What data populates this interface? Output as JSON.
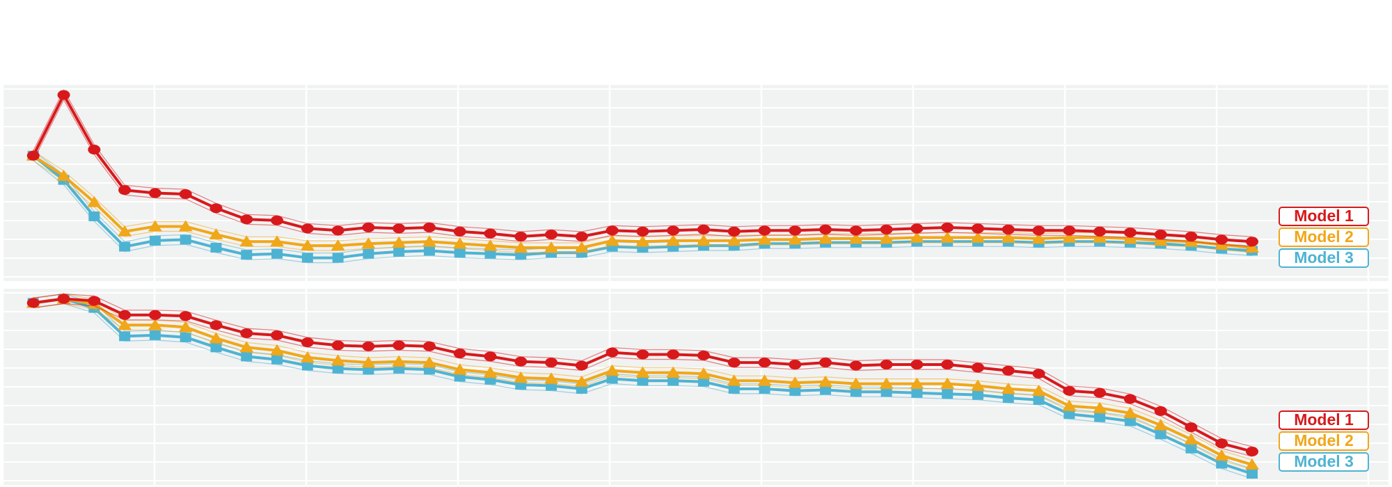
{
  "chart_data": [
    {
      "type": "line",
      "title": "",
      "xlabel": "",
      "ylabel": "",
      "grid": true,
      "legend_position": "right",
      "x": [
        1,
        2,
        3,
        4,
        5,
        6,
        7,
        8,
        9,
        10,
        11,
        12,
        13,
        14,
        15,
        16,
        17,
        18,
        19,
        20,
        21,
        22,
        23,
        24,
        25,
        26,
        27,
        28,
        29,
        30,
        31,
        32,
        33,
        34,
        35,
        36,
        37,
        38,
        39,
        40,
        41
      ],
      "xlim": [
        0,
        45.5
      ],
      "ylim": [
        0,
        97
      ],
      "series": [
        {
          "name": "Model 1",
          "color": "#d7191c",
          "marker": "circle",
          "values": [
            62,
            92,
            65,
            45,
            43.5,
            43,
            36,
            30.5,
            30,
            26,
            25,
            26.5,
            26,
            26.5,
            24.5,
            23.5,
            22,
            23,
            22,
            25,
            24.5,
            25,
            25.5,
            24.5,
            25,
            25,
            25.5,
            25,
            25.5,
            26,
            26.5,
            26,
            25.5,
            25,
            25,
            24.5,
            24,
            23,
            22,
            20.5,
            19.5
          ]
        },
        {
          "name": "Model 2",
          "color": "#f0a719",
          "marker": "triangle",
          "values": [
            62,
            52,
            39,
            24.5,
            27,
            27,
            23,
            19.5,
            19.5,
            17.5,
            17.5,
            18.5,
            19,
            19.5,
            18.5,
            17.5,
            16.5,
            16.5,
            16.5,
            20,
            19.5,
            20,
            20,
            20,
            20.5,
            20.5,
            21,
            21,
            21,
            21.5,
            21.5,
            21.5,
            21.5,
            21,
            21.5,
            21.5,
            21,
            20,
            19.5,
            18,
            16.5
          ]
        },
        {
          "name": "Model 3",
          "color": "#4eb3d3",
          "marker": "square",
          "values": [
            62,
            50,
            32,
            17,
            20,
            20.5,
            16.5,
            13,
            13.5,
            11.5,
            11.5,
            13.5,
            14.5,
            15,
            14,
            13.5,
            13,
            14,
            14,
            17,
            16.5,
            17,
            17.5,
            17.5,
            18.5,
            18.5,
            19,
            19,
            19,
            19.5,
            19.5,
            19.5,
            19.5,
            19,
            19.5,
            19.5,
            19,
            18.5,
            17.5,
            16,
            15
          ]
        }
      ]
    },
    {
      "type": "line",
      "title": "",
      "xlabel": "",
      "ylabel": "",
      "grid": true,
      "legend_position": "right",
      "x": [
        1,
        2,
        3,
        4,
        5,
        6,
        7,
        8,
        9,
        10,
        11,
        12,
        13,
        14,
        15,
        16,
        17,
        18,
        19,
        20,
        21,
        22,
        23,
        24,
        25,
        26,
        27,
        28,
        29,
        30,
        31,
        32,
        33,
        34,
        35,
        36,
        37,
        38,
        39,
        40,
        41
      ],
      "xlim": [
        0,
        45.5
      ],
      "ylim": [
        0,
        97
      ],
      "series": [
        {
          "name": "Model 1",
          "color": "#d7191c",
          "marker": "circle",
          "values": [
            90,
            92,
            91,
            84,
            84,
            83.5,
            79,
            75,
            74,
            70.5,
            69,
            68.5,
            69,
            68.5,
            65,
            63.5,
            61,
            60.5,
            59,
            65.5,
            64.5,
            64.5,
            64,
            60.5,
            60.5,
            59.5,
            60.5,
            59,
            59.5,
            59.5,
            59.5,
            58,
            56.5,
            55,
            46.5,
            45.5,
            42.5,
            36.5,
            28.5,
            20.5,
            16.5
          ]
        },
        {
          "name": "Model 2",
          "color": "#f0a719",
          "marker": "triangle",
          "values": [
            90,
            92,
            89.5,
            79,
            79,
            78,
            72.5,
            68,
            66.5,
            63,
            61.5,
            60.5,
            61,
            60.5,
            57,
            55.5,
            53,
            52.5,
            51,
            56.5,
            55.5,
            55.5,
            55,
            51.5,
            51.5,
            50.5,
            51,
            50,
            50,
            50,
            50,
            49,
            47.5,
            46.5,
            39,
            38,
            35.5,
            29.5,
            22.5,
            14.5,
            10
          ]
        },
        {
          "name": "Model 3",
          "color": "#4eb3d3",
          "marker": "square",
          "values": [
            90,
            92,
            87.5,
            73.5,
            74,
            73,
            68,
            63.5,
            62,
            59,
            57.5,
            57,
            57.5,
            57,
            53.5,
            52,
            49.5,
            49,
            47.5,
            52.5,
            51.5,
            51.5,
            51,
            47.5,
            47.5,
            46.5,
            47,
            46,
            46,
            45.5,
            45,
            44.5,
            43,
            42,
            35,
            33.5,
            31.5,
            25,
            18,
            10.5,
            5.5
          ]
        }
      ]
    }
  ]
}
